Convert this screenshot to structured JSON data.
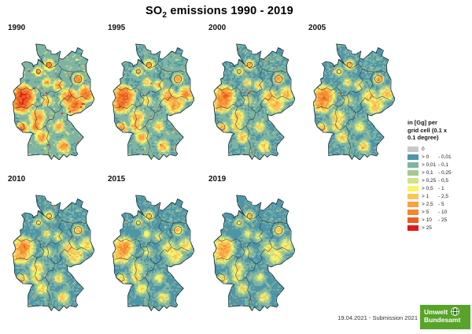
{
  "title": {
    "prefix": "SO",
    "subscript": "2",
    "suffix": " emissions 1990 - 2019"
  },
  "chart_data": {
    "type": "heatmap",
    "title": "SO2 emissions 1990 - 2019",
    "region": "Germany, small multiples by year",
    "unit": "Gg per grid cell (0.1 x 0.1 degree)",
    "panels": [
      "1990",
      "1995",
      "2000",
      "2005",
      "2010",
      "2015",
      "2019"
    ],
    "legend_classes": [
      "0",
      "> 0 - 0,01",
      "> 0,01 - 0,1",
      "> 0,1 - 0,25",
      "> 0,25 - 0,5",
      "> 0,5 - 1",
      "> 1 - 2,5",
      "> 2,5 - 5",
      "> 5 - 10",
      "> 10 - 25",
      "> 25"
    ],
    "legend_position": "right",
    "trend": "hotspots (Ruhr, Cologne, Saar, Rhine-Main, Leipzig-Halle, Lusatia, Erzgebirge) fade from red/orange in 1990 to mostly blue-teal by 2019"
  },
  "maps": {
    "years": [
      {
        "label": "1990",
        "intensity": 1.0
      },
      {
        "label": "1995",
        "intensity": 0.55
      },
      {
        "label": "2000",
        "intensity": 0.34
      },
      {
        "label": "2005",
        "intensity": 0.28
      },
      {
        "label": "2010",
        "intensity": 0.24
      },
      {
        "label": "2015",
        "intensity": 0.19
      },
      {
        "label": "2019",
        "intensity": 0.16
      }
    ]
  },
  "legend": {
    "title_lines": [
      "in [Gg] per",
      "grid cell (0.1 x",
      "0.1 degree)"
    ],
    "items": [
      {
        "color": "#c8c8c8",
        "from": "0",
        "to": ""
      },
      {
        "color": "#4e95a8",
        "from": "> 0",
        "to": "- 0,01"
      },
      {
        "color": "#7fb4a2",
        "from": "> 0,01",
        "to": "- 0,1"
      },
      {
        "color": "#a4ca8d",
        "from": "> 0,1",
        "to": "- 0,25"
      },
      {
        "color": "#d2e287",
        "from": "> 0,25",
        "to": "- 0,5"
      },
      {
        "color": "#f9f567",
        "from": "> 0,5",
        "to": "- 1"
      },
      {
        "color": "#fbc45c",
        "from": "> 1",
        "to": "- 2,5"
      },
      {
        "color": "#f9a23f",
        "from": "> 2,5",
        "to": "- 5"
      },
      {
        "color": "#f4862d",
        "from": "> 5",
        "to": "- 10"
      },
      {
        "color": "#eb5d24",
        "from": "> 10",
        "to": "- 25"
      },
      {
        "color": "#e2191b",
        "from": "> 25",
        "to": ""
      }
    ]
  },
  "footer": {
    "date_note": "19.04.2021 - Submission 2021"
  },
  "logo": {
    "line1": "Umwelt",
    "line2": "Bundesamt",
    "background": "#58a32a"
  }
}
